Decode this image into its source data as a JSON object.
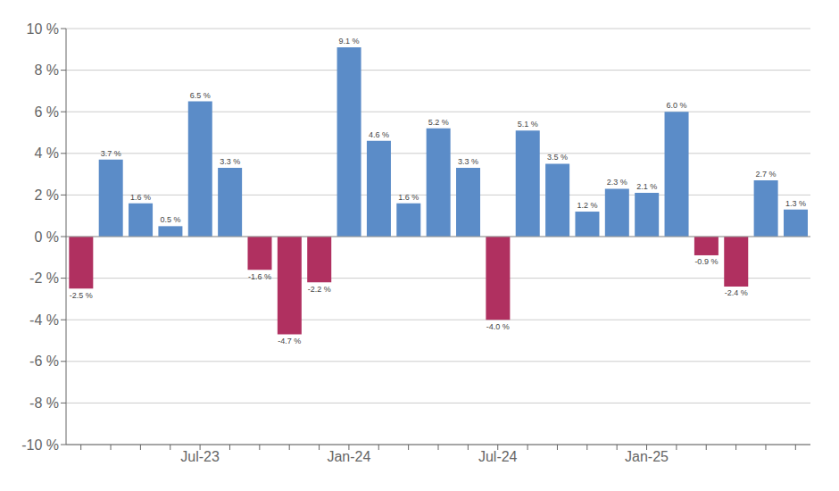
{
  "chart_data": {
    "type": "bar",
    "categories": [
      null,
      null,
      null,
      null,
      "Jul-23",
      null,
      null,
      null,
      null,
      "Jan-24",
      null,
      null,
      null,
      null,
      "Jul-24",
      null,
      null,
      null,
      null,
      "Jan-25",
      null,
      null,
      null,
      null,
      null
    ],
    "values": [
      -2.5,
      3.7,
      1.6,
      0.5,
      6.5,
      3.3,
      -1.6,
      -4.7,
      -2.2,
      9.1,
      4.6,
      1.6,
      5.2,
      3.3,
      -4.0,
      5.1,
      3.5,
      1.2,
      2.3,
      2.1,
      6.0,
      -0.9,
      -2.4,
      2.7,
      1.3
    ],
    "value_labels": [
      "-2.5 %",
      "3.7 %",
      "1.6 %",
      "0.5 %",
      "6.5 %",
      "3.3 %",
      "-1.6 %",
      "-4.7 %",
      "-2.2 %",
      "9.1 %",
      "4.6 %",
      "1.6 %",
      "5.2 %",
      "3.3 %",
      "-4.0 %",
      "5.1 %",
      "3.5 %",
      "1.2 %",
      "2.3 %",
      "2.1 %",
      "6.0 %",
      "-0.9 %",
      "-2.4 %",
      "2.7 %",
      "1.3 %"
    ],
    "colors": [
      "#b03060",
      "#5b8cc8",
      "#5b8cc8",
      "#5b8cc8",
      "#5b8cc8",
      "#5b8cc8",
      "#b03060",
      "#b03060",
      "#b03060",
      "#5b8cc8",
      "#5b8cc8",
      "#5b8cc8",
      "#5b8cc8",
      "#5b8cc8",
      "#b03060",
      "#5b8cc8",
      "#5b8cc8",
      "#5b8cc8",
      "#5b8cc8",
      "#5b8cc8",
      "#5b8cc8",
      "#b03060",
      "#b03060",
      "#5b8cc8",
      "#5b8cc8"
    ],
    "ylim": [
      -10,
      10
    ],
    "yticks": [
      {
        "value": -10,
        "label": "-10 %"
      },
      {
        "value": -8,
        "label": "-8 %"
      },
      {
        "value": -6,
        "label": "-6 %"
      },
      {
        "value": -4,
        "label": "-4 %"
      },
      {
        "value": -2,
        "label": "-2 %"
      },
      {
        "value": 0,
        "label": "0 %"
      },
      {
        "value": 2,
        "label": "2 %"
      },
      {
        "value": 4,
        "label": "4 %"
      },
      {
        "value": 6,
        "label": "6 %"
      },
      {
        "value": 8,
        "label": "8 %"
      },
      {
        "value": 10,
        "label": "10 %"
      }
    ],
    "grid": true,
    "data_labels": true
  }
}
